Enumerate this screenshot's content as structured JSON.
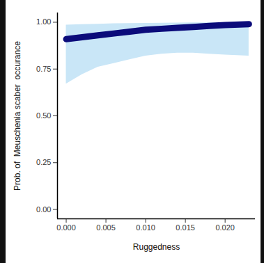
{
  "chart_data": {
    "type": "line",
    "x_label": "Ruggedness",
    "y_label": "Prob. of  Meuschenia scaber  occurance",
    "x": [
      0,
      0.002,
      0.004,
      0.006,
      0.008,
      0.01,
      0.012,
      0.014,
      0.016,
      0.018,
      0.02,
      0.023
    ],
    "values": [
      0.91,
      0.92,
      0.93,
      0.94,
      0.95,
      0.96,
      0.965,
      0.97,
      0.975,
      0.98,
      0.985,
      0.99
    ],
    "lower": [
      0.67,
      0.72,
      0.76,
      0.78,
      0.8,
      0.82,
      0.83,
      0.835,
      0.835,
      0.83,
      0.825,
      0.82
    ],
    "upper": [
      0.985,
      0.988,
      0.99,
      0.992,
      0.993,
      0.994,
      0.995,
      0.996,
      0.997,
      0.997,
      0.998,
      0.998
    ],
    "color": "#0b0b7a",
    "xlim": [
      -0.0011,
      0.0238
    ],
    "xticks": [
      {
        "value": 0,
        "label": "0.000"
      },
      {
        "value": 0.005,
        "label": "0.005"
      },
      {
        "value": 0.01,
        "label": "0.010"
      },
      {
        "value": 0.015,
        "label": "0.015"
      },
      {
        "value": 0.02,
        "label": "0.020"
      }
    ],
    "ylim": [
      -0.05,
      1.05
    ],
    "yticks": [
      {
        "value": 0,
        "label": "0.00"
      },
      {
        "value": 0.25,
        "label": "0.25"
      },
      {
        "value": 0.5,
        "label": "0.50"
      },
      {
        "value": 0.75,
        "label": "0.75"
      },
      {
        "value": 1,
        "label": "1.00"
      }
    ],
    "grid": false
  }
}
